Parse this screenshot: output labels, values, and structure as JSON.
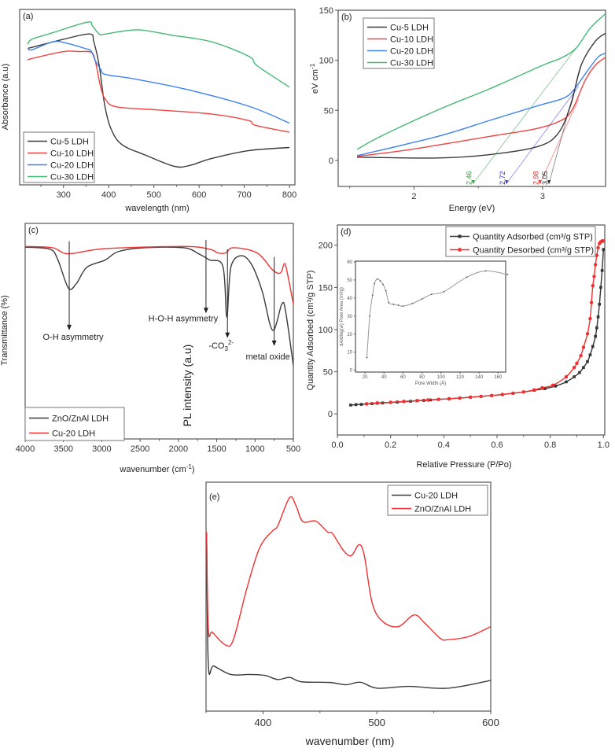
{
  "chart_data": [
    {
      "panel_label": "(a)",
      "type": "line",
      "xlabel": "wavelength (nm)",
      "ylabel": "Absorbance (a.u)",
      "xlim": [
        203,
        812
      ],
      "ylim": [
        0,
        100
      ],
      "xticks": [
        "300",
        "400",
        "500",
        "600",
        "700",
        "800"
      ],
      "yticks": [],
      "grid": false,
      "legend_position": "bottom-left",
      "series": [
        {
          "name": "Cu-5 LDH",
          "color": "#3a3a3a",
          "x": [
            221,
            300,
            358,
            367,
            379,
            391,
            405,
            429,
            481,
            546,
            581,
            627,
            709,
            800
          ],
          "y": [
            77.8,
            83,
            86,
            81.6,
            68,
            45.7,
            32,
            23,
            17,
            10.5,
            11.2,
            15,
            19.5,
            21.3
          ]
        },
        {
          "name": "Cu-10 LDH",
          "color": "#f04545",
          "x": [
            221,
            230,
            300,
            335,
            361,
            370,
            382,
            393,
            417,
            510,
            627,
            709,
            724,
            800
          ],
          "y": [
            71,
            72,
            76,
            76,
            75.6,
            71,
            56,
            48.7,
            44.5,
            42.7,
            40.4,
            36.7,
            34,
            30
          ]
        },
        {
          "name": "Cu-20 LDH",
          "color": "#3d82f0",
          "x": [
            221,
            230,
            277,
            306,
            347,
            361,
            370,
            382,
            393,
            452,
            569,
            709,
            800
          ],
          "y": [
            77.8,
            77,
            81.6,
            80.8,
            77.8,
            76.3,
            71,
            66,
            62.9,
            60.6,
            54.6,
            44.9,
            35.2
          ]
        },
        {
          "name": "Cu-30 LDH",
          "color": "#45b873",
          "x": [
            221,
            230,
            277,
            353,
            364,
            379,
            393,
            423,
            470,
            540,
            627,
            709,
            724,
            744,
            800
          ],
          "y": [
            80,
            83,
            86.8,
            92.8,
            90.6,
            86,
            86,
            87.3,
            88.3,
            85.3,
            81.6,
            73.4,
            68.9,
            65.1,
            55.7
          ]
        }
      ]
    },
    {
      "panel_label": "(b)",
      "type": "line",
      "xlabel": "Energy (eV)",
      "ylabel": "eV cm",
      "ylabel_sup": "-1",
      "xlim": [
        1.41,
        3.49
      ],
      "ylim": [
        -26,
        150
      ],
      "xticks": [
        "2",
        "3"
      ],
      "yticks": [
        "0",
        "50",
        "100",
        "150"
      ],
      "grid": false,
      "legend_position": "top-left",
      "series": [
        {
          "name": "Cu-5 LDH",
          "color": "#3a3a3a",
          "x": [
            1.557,
            2.187,
            2.59,
            2.96,
            3.12,
            3.22,
            3.3,
            3.41,
            3.49
          ],
          "y": [
            3.2,
            2.4,
            5.8,
            13.7,
            26.8,
            55.8,
            95,
            119,
            127
          ]
        },
        {
          "name": "Cu-10 LDH",
          "color": "#f04545",
          "x": [
            1.557,
            1.98,
            2.59,
            2.96,
            3.16,
            3.24,
            3.33,
            3.41,
            3.49
          ],
          "y": [
            4,
            11,
            24,
            32,
            41,
            53,
            79.5,
            95,
            103
          ]
        },
        {
          "name": "Cu-20 LDH",
          "color": "#3d82f0",
          "x": [
            1.557,
            2.187,
            2.59,
            2.96,
            3.16,
            3.24,
            3.33,
            3.43,
            3.49
          ],
          "y": [
            4.7,
            24,
            40,
            54.5,
            62,
            70,
            86,
            103,
            107
          ]
        },
        {
          "name": "Cu-30 LDH",
          "color": "#45b873",
          "x": [
            1.557,
            1.74,
            2.187,
            2.59,
            3.0,
            3.14,
            3.26,
            3.37,
            3.49
          ],
          "y": [
            11,
            24,
            50.5,
            71.6,
            95,
            102,
            112,
            132,
            146.6
          ]
        }
      ],
      "annotations": [
        {
          "text": "2.46",
          "color": "#2a9a3a",
          "x": 2.46,
          "to": [
            3.26,
            112
          ]
        },
        {
          "text": "2.72",
          "color": "#2a2af0",
          "x": 2.72,
          "to": [
            3.28,
            74
          ]
        },
        {
          "text": "2.98",
          "color": "#f02a2a",
          "x": 2.98,
          "to": [
            3.28,
            61
          ]
        },
        {
          "text": "3.05",
          "color": "#222222",
          "x": 3.05,
          "to": [
            3.3,
            95
          ]
        }
      ]
    },
    {
      "panel_label": "(c)",
      "type": "line",
      "xlabel": "wavenumber (cm",
      "xlabel_sup": "-1",
      "xlabel_end": ")",
      "ylabel": "Transmittance (%)",
      "xlim": [
        4000,
        500
      ],
      "ylim": [
        0,
        100
      ],
      "xticks": [
        "4000",
        "3500",
        "3000",
        "2500",
        "2000",
        "1500",
        "1000",
        "500"
      ],
      "yticks": [],
      "grid": false,
      "legend_position": "bottom-left",
      "series": [
        {
          "name": "ZnO/ZnAl LDH",
          "color": "#3a3a3a",
          "x": [
            4000,
            3675,
            3572,
            3436,
            3333,
            3196,
            2956,
            2785,
            2443,
            1931,
            1726,
            1590,
            1419,
            1368,
            1316,
            1180,
            1043,
            907,
            770,
            650,
            600,
            500
          ],
          "y": [
            89,
            88,
            83,
            70,
            72,
            79.6,
            83,
            86.9,
            88.7,
            88.7,
            85.7,
            83,
            80,
            56.5,
            79.6,
            85,
            80.8,
            68.6,
            50.4,
            62.6,
            59,
            34
          ]
        },
        {
          "name": "Cu-20 LDH",
          "color": "#f03535",
          "x": [
            4000,
            3641,
            3436,
            2956,
            1931,
            1590,
            1487,
            1385,
            1282,
            975,
            770,
            668,
            617,
            583,
            500
          ],
          "y": [
            89.3,
            88.7,
            85.9,
            88.3,
            89.3,
            88,
            86.3,
            86.3,
            88.7,
            86.3,
            78.4,
            77,
            81.4,
            77.8,
            62.6
          ]
        }
      ],
      "annotations": [
        {
          "text": "O-H asymmetry",
          "x": 3425,
          "from": 91.7,
          "to": 50.4
        },
        {
          "text": "H-O-H asymmetry",
          "x": 1640,
          "from": 92.3,
          "to": 58.3
        },
        {
          "text": "-CO",
          "sub": "3",
          "sup": "2-",
          "x": 1360,
          "from": 88,
          "to": 46.8
        },
        {
          "text": "metal oxide",
          "x": 750,
          "from": 84.4,
          "to": 43.1
        }
      ]
    },
    {
      "panel_label": "(d)",
      "type": "scatter",
      "xlabel": "Relative Pressure (P/Po)",
      "ylabel": "Quantity Adsorbed (cm³/g STP)",
      "xlim": [
        0,
        1.005
      ],
      "ylim": [
        -25,
        224
      ],
      "xticks": [
        "0.0",
        "0.2",
        "0.4",
        "0.6",
        "0.8",
        "1.0"
      ],
      "yticks": [
        "0",
        "50",
        "100",
        "150",
        "200"
      ],
      "grid": false,
      "legend_position": "top-right",
      "series": [
        {
          "name": "Quantity Adsorbed (cm³/g STP)",
          "color": "#333333",
          "marker": "square",
          "x": [
            0.05,
            0.07,
            0.09,
            0.11,
            0.13,
            0.15,
            0.17,
            0.2,
            0.225,
            0.25,
            0.275,
            0.3,
            0.325,
            0.35,
            0.38,
            0.42,
            0.46,
            0.5,
            0.54,
            0.58,
            0.62,
            0.66,
            0.7,
            0.74,
            0.78,
            0.82,
            0.86,
            0.89,
            0.91,
            0.925,
            0.94,
            0.95,
            0.96,
            0.97,
            0.975,
            0.98,
            0.985,
            0.99,
            0.995,
            1.0
          ],
          "y": [
            10.5,
            11,
            11.3,
            11.8,
            12.2,
            12.6,
            13,
            13.5,
            14,
            14.5,
            15,
            15.5,
            16,
            16.5,
            17.2,
            18,
            18.8,
            19.8,
            20.8,
            21.8,
            23,
            24.5,
            26,
            28,
            30,
            33,
            38,
            44,
            49,
            55,
            62,
            70,
            80,
            92,
            102,
            115,
            130,
            150,
            170,
            195
          ]
        },
        {
          "name": "Quantity Desorbed (cm³/g STP)",
          "color": "#f03030",
          "marker": "circle",
          "x": [
            0.11,
            0.15,
            0.2,
            0.25,
            0.3,
            0.34,
            0.38,
            0.42,
            0.46,
            0.5,
            0.54,
            0.58,
            0.62,
            0.66,
            0.7,
            0.74,
            0.77,
            0.81,
            0.86,
            0.89,
            0.9,
            0.915,
            0.925,
            0.94,
            0.95,
            0.955,
            0.96,
            0.965,
            0.97,
            0.975,
            0.98,
            0.985,
            0.99,
            0.995,
            1.0
          ],
          "y": [
            12,
            13,
            13.8,
            14.8,
            15.8,
            16.5,
            17.3,
            18,
            18.8,
            19.8,
            20.8,
            21.8,
            23,
            24.5,
            26,
            28.5,
            31,
            34,
            44,
            55,
            60,
            69,
            79,
            95,
            113,
            132,
            152,
            163,
            177,
            188,
            197,
            202,
            204,
            205,
            205
          ]
        }
      ],
      "inset": {
        "type": "line",
        "xlabel": "Pore Width (Å)",
        "ylabel": "dA/dlog(w) Pore Area (m²/g)",
        "xlim": [
          10,
          168
        ],
        "ylim": [
          -1,
          60.4
        ],
        "xticks": [
          "20",
          "40",
          "60",
          "80",
          "100",
          "120",
          "140",
          "160"
        ],
        "yticks": [
          "0",
          "10",
          "20",
          "30",
          "40",
          "50",
          "60"
        ],
        "series": [
          {
            "color": "#999999",
            "marker": "dot",
            "x": [
              22,
              25,
              28,
              30,
              33,
              36,
              39,
              42,
              45,
              50,
              55,
              60,
              70,
              80,
              90,
              103,
              127,
              147,
              170
            ],
            "y": [
              7,
              30,
              41.5,
              48,
              50.5,
              49.5,
              47.5,
              44,
              37.5,
              36.5,
              36,
              35.5,
              37,
              39.5,
              42,
              43.5,
              51.5,
              55,
              53
            ]
          }
        ]
      }
    },
    {
      "panel_label": "(e)",
      "type": "line",
      "xlabel": "wavenumber (nm)",
      "ylabel": "PL intensity (a.u)",
      "xlim": [
        350,
        600
      ],
      "ylim": [
        0,
        100
      ],
      "xticks": [
        "400",
        "500",
        "600"
      ],
      "yticks": [],
      "grid": false,
      "legend_position": "top-right",
      "series": [
        {
          "name": "Cu-20 LDH",
          "color": "#3a3a3a",
          "x": [
            350.5,
            352,
            356.8,
            371.7,
            387.8,
            401.6,
            413,
            423.4,
            433.8,
            459,
            472.9,
            485.5,
            500.5,
            528,
            562.5,
            600
          ],
          "y": [
            77,
            20.3,
            19.7,
            16,
            16,
            15.6,
            13.8,
            14.7,
            12.8,
            12.5,
            11.5,
            12.6,
            10,
            10.8,
            10,
            13.4
          ]
        },
        {
          "name": "ZnO/ZnAl LDH",
          "color": "#f03030",
          "x": [
            350.5,
            352,
            355.6,
            367,
            374,
            385.5,
            397,
            408.5,
            413,
            423.4,
            429,
            435,
            446.4,
            456.8,
            461,
            470.6,
            477.5,
            484.4,
            489,
            495.9,
            505,
            518.8,
            532.6,
            541.8,
            555.6,
            562.5,
            580.9,
            600
          ],
          "y": [
            78.2,
            35.8,
            34.4,
            28.9,
            31.2,
            53,
            71.3,
            78.8,
            81,
            93.3,
            89.7,
            82.8,
            83,
            78.2,
            77.6,
            70.2,
            67.9,
            72.7,
            67.9,
            47.2,
            39.2,
            36.9,
            42,
            38.6,
            31.8,
            31.2,
            32.6,
            36.9
          ]
        }
      ]
    }
  ]
}
